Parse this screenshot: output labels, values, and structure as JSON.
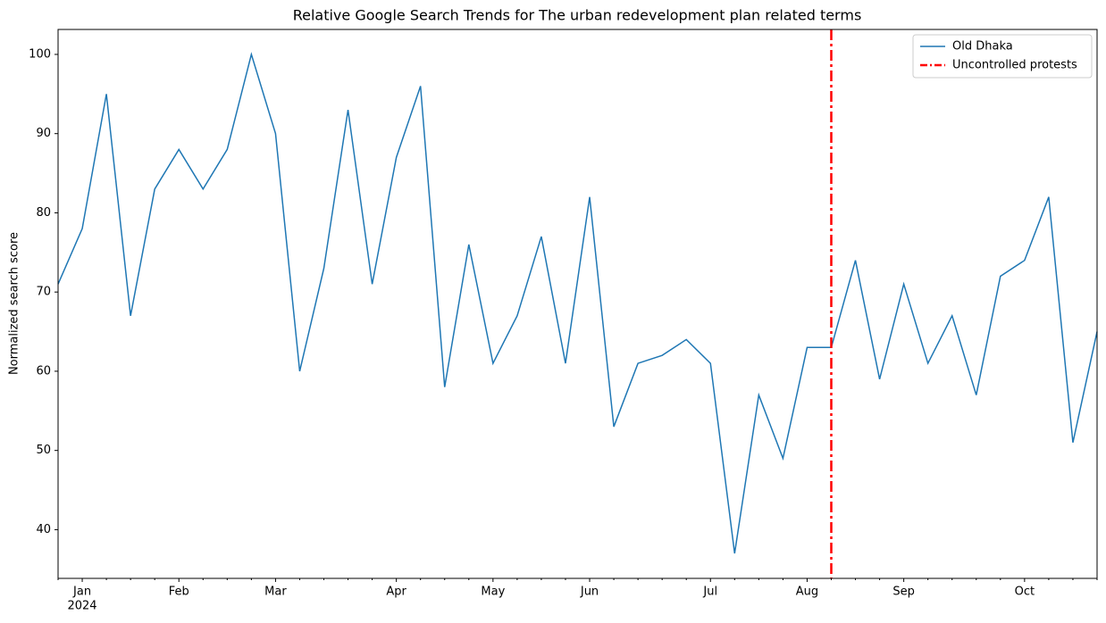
{
  "chart_data": {
    "type": "line",
    "title": "Relative Google Search Trends for The urban redevelopment plan related terms",
    "y_label": "Normalized search score",
    "categories": [
      null,
      "Jan",
      null,
      null,
      null,
      "Feb",
      null,
      null,
      null,
      "Mar",
      null,
      null,
      null,
      null,
      "Apr",
      null,
      null,
      null,
      "May",
      null,
      null,
      null,
      "Jun",
      null,
      null,
      null,
      null,
      "Jul",
      null,
      null,
      null,
      "Aug",
      null,
      null,
      null,
      "Sep",
      null,
      null,
      null,
      null,
      "Oct",
      null,
      null,
      null
    ],
    "year_label": "2024",
    "series": [
      {
        "name": "Old Dhaka",
        "color": "#1f77b4",
        "values": [
          71,
          78,
          95,
          67,
          83,
          88,
          83,
          88,
          100,
          90,
          60,
          73,
          93,
          71,
          87,
          96,
          58,
          76,
          61,
          67,
          77,
          61,
          82,
          53,
          61,
          62,
          64,
          61,
          37,
          57,
          49,
          63,
          63,
          74,
          59,
          71,
          61,
          67,
          57,
          72,
          74,
          82,
          51,
          65
        ]
      }
    ],
    "vline": {
      "name": "Uncontrolled protests",
      "x_index": 32,
      "color": "#ff0000"
    },
    "ylim": [
      33.85,
      103.15
    ],
    "yticks": [
      40,
      50,
      60,
      70,
      80,
      90,
      100
    ],
    "legend": "upper right"
  }
}
